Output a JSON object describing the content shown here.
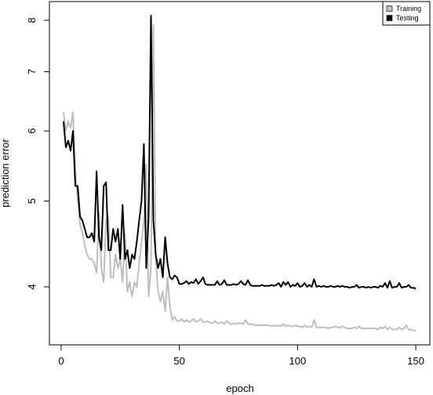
{
  "chart_data": {
    "type": "line",
    "xlabel": "epoch",
    "ylabel": "prediction error",
    "ylog": true,
    "legend": "top-right",
    "xlim": [
      -4.96,
      155.96
    ],
    "ylim": [
      3.44,
      8.4
    ],
    "xticks": [
      0,
      50,
      100,
      150
    ],
    "yticks": [
      4,
      5,
      6,
      7,
      8
    ],
    "x": [
      1,
      2,
      3,
      4,
      5,
      6,
      7,
      8,
      9,
      10,
      11,
      12,
      13,
      14,
      15,
      16,
      17,
      18,
      19,
      20,
      21,
      22,
      23,
      24,
      25,
      26,
      27,
      28,
      29,
      30,
      31,
      32,
      33,
      34,
      35,
      36,
      37,
      38,
      39,
      40,
      41,
      42,
      43,
      44,
      45,
      46,
      47,
      48,
      49,
      50,
      51,
      52,
      53,
      54,
      55,
      56,
      57,
      58,
      59,
      60,
      61,
      62,
      63,
      64,
      65,
      66,
      67,
      68,
      69,
      70,
      71,
      72,
      73,
      74,
      75,
      76,
      77,
      78,
      79,
      80,
      81,
      82,
      83,
      84,
      85,
      86,
      87,
      88,
      89,
      90,
      91,
      92,
      93,
      94,
      95,
      96,
      97,
      98,
      99,
      100,
      101,
      102,
      103,
      104,
      105,
      106,
      107,
      108,
      109,
      110,
      111,
      112,
      113,
      114,
      115,
      116,
      117,
      118,
      119,
      120,
      121,
      122,
      123,
      124,
      125,
      126,
      127,
      128,
      129,
      130,
      131,
      132,
      133,
      134,
      135,
      136,
      137,
      138,
      139,
      140,
      141,
      142,
      143,
      144,
      145,
      146,
      147,
      148,
      149,
      150
    ],
    "series": [
      {
        "name": "Training",
        "color": "#bebebe",
        "values": [
          6.3,
          6.0,
          6.15,
          6.05,
          6.3,
          5.4,
          5.0,
          4.7,
          4.6,
          4.45,
          4.35,
          4.3,
          4.3,
          4.25,
          4.15,
          4.85,
          4.2,
          4.05,
          4.75,
          4.8,
          4.1,
          4.1,
          4.35,
          4.2,
          4.3,
          4.05,
          4.6,
          3.95,
          4.05,
          3.9,
          4.05,
          4.0,
          4.25,
          4.5,
          4.75,
          5.5,
          3.9,
          4.2,
          7.9,
          4.3,
          3.95,
          3.85,
          3.95,
          3.75,
          4.1,
          3.8,
          3.67,
          3.7,
          3.66,
          3.66,
          3.68,
          3.65,
          3.67,
          3.65,
          3.66,
          3.68,
          3.65,
          3.66,
          3.68,
          3.65,
          3.65,
          3.66,
          3.64,
          3.64,
          3.66,
          3.64,
          3.64,
          3.65,
          3.63,
          3.66,
          3.64,
          3.63,
          3.64,
          3.63,
          3.64,
          3.64,
          3.63,
          3.67,
          3.63,
          3.63,
          3.63,
          3.62,
          3.62,
          3.62,
          3.62,
          3.62,
          3.62,
          3.62,
          3.61,
          3.62,
          3.61,
          3.62,
          3.61,
          3.63,
          3.61,
          3.62,
          3.61,
          3.61,
          3.62,
          3.61,
          3.61,
          3.6,
          3.62,
          3.6,
          3.61,
          3.6,
          3.67,
          3.6,
          3.6,
          3.6,
          3.6,
          3.6,
          3.59,
          3.6,
          3.6,
          3.61,
          3.6,
          3.6,
          3.61,
          3.6,
          3.59,
          3.59,
          3.59,
          3.6,
          3.59,
          3.61,
          3.59,
          3.59,
          3.59,
          3.59,
          3.59,
          3.59,
          3.59,
          3.58,
          3.6,
          3.59,
          3.61,
          3.58,
          3.6,
          3.58,
          3.58,
          3.58,
          3.6,
          3.58,
          3.59,
          3.62,
          3.58,
          3.58,
          3.57,
          3.57
        ]
      },
      {
        "name": "Testing",
        "color": "#000000",
        "values": [
          6.15,
          5.75,
          5.85,
          5.7,
          6.0,
          5.2,
          5.2,
          4.8,
          4.75,
          4.65,
          4.55,
          4.55,
          4.6,
          4.5,
          5.4,
          4.55,
          4.4,
          5.2,
          5.25,
          4.4,
          4.4,
          4.65,
          4.5,
          4.65,
          4.3,
          4.95,
          4.3,
          4.4,
          4.2,
          4.35,
          4.3,
          4.5,
          4.75,
          5.0,
          5.8,
          4.2,
          4.8,
          8.1,
          4.75,
          4.35,
          4.2,
          4.3,
          4.1,
          4.55,
          4.25,
          4.1,
          4.08,
          4.12,
          4.1,
          4.03,
          4.03,
          4.04,
          4.06,
          4.03,
          4.05,
          4.04,
          4.08,
          4.03,
          4.06,
          4.1,
          4.03,
          4.02,
          4.02,
          4.02,
          4.02,
          4.06,
          4.02,
          4.03,
          4.07,
          4.02,
          4.02,
          4.02,
          4.03,
          4.02,
          4.03,
          4.06,
          4.03,
          4.02,
          4.07,
          4.02,
          4.01,
          4.01,
          4.01,
          4.01,
          4.02,
          4.01,
          4.01,
          4.01,
          4.02,
          4.01,
          4.02,
          4.04,
          4.0,
          4.05,
          4.02,
          4.05,
          4.0,
          4.02,
          4.01,
          4.04,
          4.0,
          4.01,
          4.04,
          4.0,
          4.02,
          4.0,
          4.08,
          4.0,
          4.01,
          4.0,
          4.01,
          4.0,
          4.0,
          4.01,
          4.0,
          4.0,
          4.01,
          4.0,
          4.01,
          4.0,
          4.0,
          3.99,
          4.0,
          4.0,
          4.02,
          3.99,
          4.0,
          4.0,
          3.99,
          4.0,
          3.99,
          4.0,
          4.0,
          3.99,
          4.01,
          4.0,
          4.04,
          3.99,
          4.06,
          3.99,
          4.0,
          4.0,
          4.04,
          3.99,
          4.0,
          4.0,
          4.02,
          3.99,
          3.99,
          3.98
        ]
      }
    ]
  }
}
